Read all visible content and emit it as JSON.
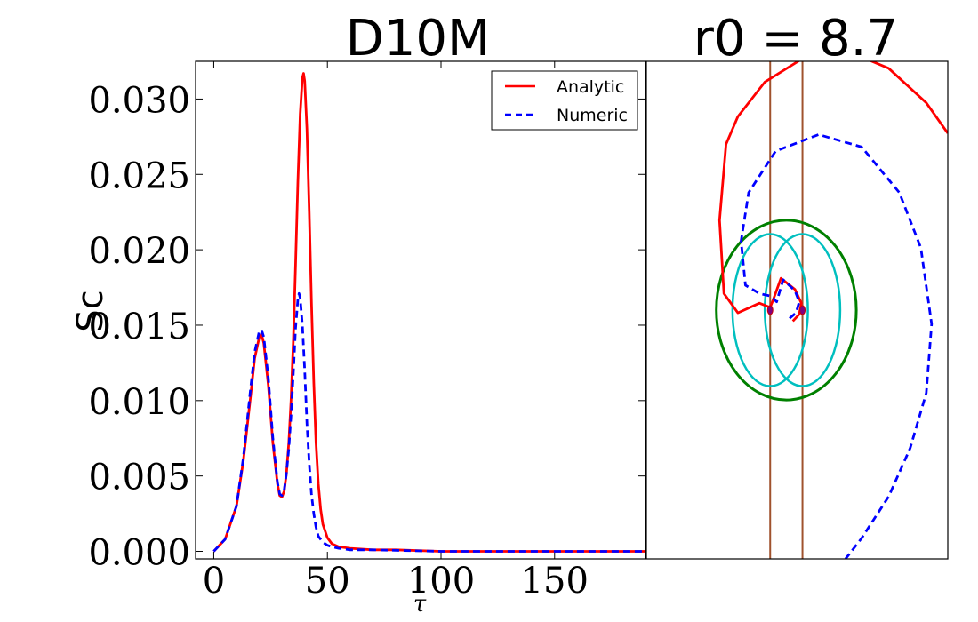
{
  "chart_data": [
    {
      "type": "line",
      "title": "D10M",
      "xlabel": "τ",
      "ylabel": "Sc",
      "xlim": [
        -8,
        190
      ],
      "ylim": [
        -0.0005,
        0.0325
      ],
      "xticks": [
        0,
        50,
        100,
        150
      ],
      "xtick_labels": [
        "0",
        "50",
        "100",
        "150"
      ],
      "yticks": [
        0.0,
        0.005,
        0.01,
        0.015,
        0.02,
        0.025,
        0.03
      ],
      "ytick_labels": [
        "0.000",
        "0.005",
        "0.010",
        "0.015",
        "0.020",
        "0.025",
        "0.030"
      ],
      "grid": false,
      "legend_position": "top-right",
      "series": [
        {
          "name": "Analytic",
          "color": "#ff0000",
          "style": "solid",
          "x": [
            0,
            5,
            10,
            13,
            16,
            18,
            20,
            21,
            22,
            24,
            26,
            28,
            29,
            30,
            31,
            32,
            33,
            34,
            35,
            36,
            37,
            38,
            39,
            39.5,
            40,
            41,
            42,
            43,
            44,
            45,
            46,
            47,
            48,
            50,
            52,
            55,
            60,
            70,
            80,
            100,
            150,
            190
          ],
          "y": [
            0.0,
            0.0008,
            0.003,
            0.006,
            0.01,
            0.0128,
            0.0142,
            0.0144,
            0.0138,
            0.011,
            0.0072,
            0.0045,
            0.0037,
            0.0036,
            0.004,
            0.0052,
            0.0072,
            0.01,
            0.014,
            0.019,
            0.0245,
            0.029,
            0.0314,
            0.0317,
            0.0312,
            0.028,
            0.0225,
            0.0165,
            0.0112,
            0.0072,
            0.0045,
            0.0028,
            0.0018,
            0.0009,
            0.0005,
            0.0003,
            0.0002,
            0.0001,
            0.0001,
            0.0,
            0.0,
            0.0
          ]
        },
        {
          "name": "Numeric",
          "color": "#0000ff",
          "style": "dashed",
          "x": [
            0,
            5,
            10,
            13,
            16,
            18,
            20,
            21,
            22,
            24,
            26,
            28,
            29,
            30,
            31,
            32,
            33,
            34,
            35,
            36,
            37,
            37.5,
            38,
            39,
            40,
            41,
            42,
            43,
            44,
            45,
            46,
            48,
            50,
            52,
            55,
            60,
            70,
            100,
            150,
            190
          ],
          "y": [
            0.0,
            0.0008,
            0.003,
            0.0062,
            0.0105,
            0.0132,
            0.0146,
            0.0147,
            0.0142,
            0.0115,
            0.0075,
            0.0046,
            0.0038,
            0.0037,
            0.0041,
            0.0052,
            0.0068,
            0.009,
            0.0118,
            0.0148,
            0.0167,
            0.0171,
            0.0168,
            0.015,
            0.012,
            0.0085,
            0.0058,
            0.0038,
            0.0025,
            0.0016,
            0.001,
            0.0006,
            0.0004,
            0.0003,
            0.0002,
            0.0001,
            0.0001,
            0.0,
            0.0,
            0.0
          ]
        }
      ]
    },
    {
      "type": "line",
      "title": "r0 = 8.7",
      "xlabel": "",
      "ylabel": "",
      "xlim": [
        -13,
        15
      ],
      "ylim": [
        -18,
        18
      ],
      "grid": false,
      "legend_position": "none",
      "series": [
        {
          "name": "analytic-trajectory",
          "color": "#ff0000",
          "style": "solid",
          "x": [
            0.6,
            1.2,
            1.4,
            0.8,
            -0.5,
            -1.2,
            -1.5,
            -2.5,
            -4.5,
            -5.8,
            -6.2,
            -5.6,
            -4.5,
            -2.0,
            1.5,
            5.5,
            9.5,
            13.0,
            15.0
          ],
          "y": [
            -0.8,
            -0.3,
            0.5,
            1.5,
            2.3,
            0.8,
            0.2,
            0.5,
            -0.2,
            1.2,
            6.5,
            12.0,
            14.0,
            16.5,
            18.2,
            18.8,
            17.5,
            15.0,
            12.8
          ]
        },
        {
          "name": "numeric-trajectory",
          "color": "#0000ff",
          "style": "dashed",
          "x": [
            0.3,
            0.9,
            1.2,
            0.8,
            -0.3,
            -0.9,
            -1.4,
            -2.5,
            -3.8,
            -4.2,
            -3.5,
            -1.0,
            3.0,
            7.0,
            10.5,
            12.5,
            13.5,
            13.0,
            11.5,
            9.5,
            7.0,
            5.5
          ],
          "y": [
            -0.6,
            -0.2,
            0.6,
            1.4,
            2.2,
            0.6,
            1.0,
            1.2,
            1.8,
            5.0,
            8.5,
            11.5,
            12.7,
            11.8,
            8.5,
            4.5,
            -1.0,
            -6.0,
            -10.0,
            -13.5,
            -16.5,
            -18.0
          ]
        }
      ],
      "circles": [
        {
          "name": "outer-orbit",
          "color": "#008000",
          "cx": 0,
          "cy": 0,
          "r": 6.5,
          "ry": 6.5
        },
        {
          "name": "left-ring",
          "color": "#00bfbf",
          "cx": -1.5,
          "cy": 0,
          "r": 3.5,
          "ry": 5.5
        },
        {
          "name": "right-ring",
          "color": "#00bfbf",
          "cx": 1.5,
          "cy": 0,
          "r": 3.5,
          "ry": 5.5
        }
      ],
      "vlines": {
        "color": "#a0522d",
        "x": [
          -1.5,
          1.5
        ]
      },
      "points": {
        "color": "#800080",
        "x": [
          -1.5,
          1.5
        ],
        "y": [
          0,
          0
        ]
      }
    }
  ]
}
